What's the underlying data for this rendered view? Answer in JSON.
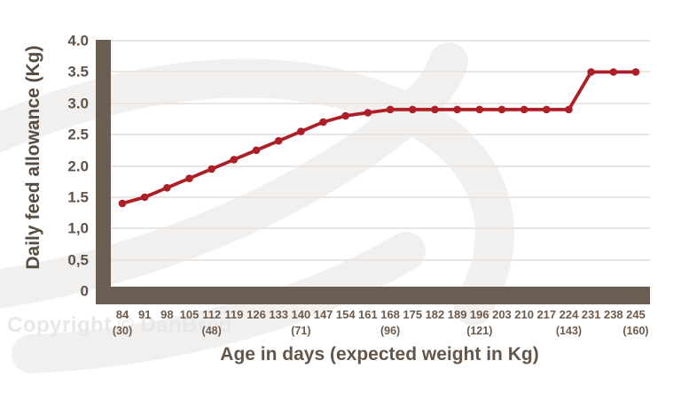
{
  "watermark": {
    "copyright": "Copyright © DanBred",
    "logo_icon": "danbred-swoosh-logo"
  },
  "colors": {
    "line": "#ad1f27",
    "axis_bar": "#6a5e53",
    "gridline": "#eae5e0",
    "tick_text": "#6b5b4e",
    "title_text": "#594d42",
    "copyright_text": "#eae8e6",
    "watermark_logo": "#f2f0ee"
  },
  "chart_data": {
    "type": "line",
    "title": "",
    "xlabel": "Age in days (expected weight in Kg)",
    "ylabel": "Daily feed allowance (Kg)",
    "x": [
      84,
      91,
      98,
      105,
      112,
      119,
      126,
      133,
      140,
      147,
      154,
      161,
      168,
      175,
      182,
      189,
      196,
      203,
      210,
      217,
      224,
      231,
      238,
      245
    ],
    "x_weight_labels": [
      "(30)",
      "",
      "",
      "",
      "(48)",
      "",
      "",
      "",
      "(71)",
      "",
      "",
      "",
      "(96)",
      "",
      "",
      "",
      "(121)",
      "",
      "",
      "",
      "(143)",
      "",
      "",
      "(160)"
    ],
    "series": [
      {
        "name": "Daily feed allowance",
        "values": [
          1.4,
          1.5,
          1.65,
          1.8,
          1.95,
          2.1,
          2.25,
          2.4,
          2.55,
          2.7,
          2.8,
          2.85,
          2.9,
          2.9,
          2.9,
          2.9,
          2.9,
          2.9,
          2.9,
          2.9,
          2.9,
          3.5,
          3.5,
          3.5
        ]
      }
    ],
    "ylim": [
      0,
      4.0
    ],
    "y_ticks": [
      {
        "label": "4.0",
        "value": 4.0
      },
      {
        "label": "3.5",
        "value": 3.5
      },
      {
        "label": "3.0",
        "value": 3.0
      },
      {
        "label": "2.5",
        "value": 2.5
      },
      {
        "label": "2.0",
        "value": 2.0
      },
      {
        "label": "1.5",
        "value": 1.5
      },
      {
        "label": "1,0",
        "value": 1.0
      },
      {
        "label": "0,5",
        "value": 0.5
      },
      {
        "label": "0",
        "value": 0.0
      }
    ],
    "grid": "horizontal",
    "legend_position": "none"
  }
}
